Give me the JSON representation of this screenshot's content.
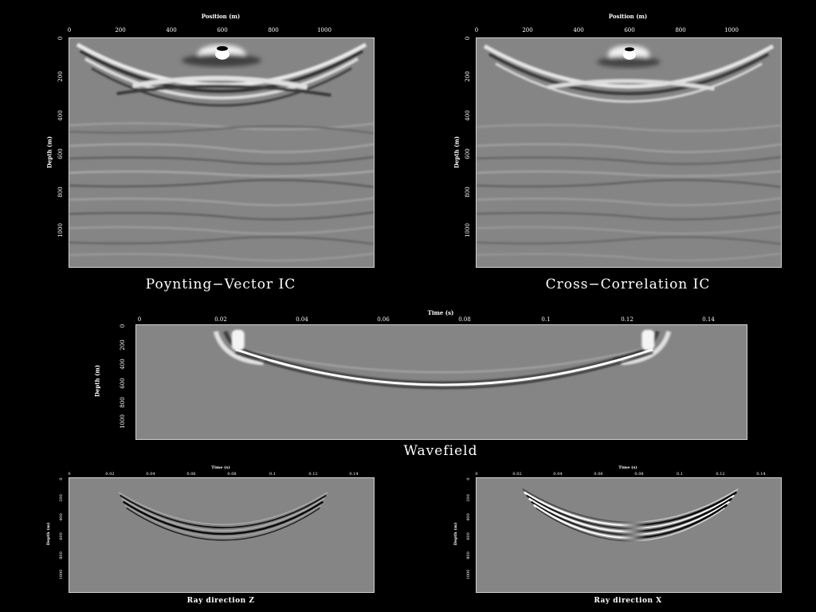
{
  "panels": {
    "pv": {
      "caption": "Poynting−Vector IC",
      "xlabel": "Position (m)",
      "ylabel": "Depth (m)",
      "xticks": [
        "0",
        "200",
        "400",
        "600",
        "800",
        "1000"
      ],
      "yticks": [
        "0",
        "200",
        "400",
        "600",
        "800",
        "1000"
      ]
    },
    "cc": {
      "caption": "Cross−Correlation IC",
      "xlabel": "Position (m)",
      "ylabel": "Depth (m)",
      "xticks": [
        "0",
        "200",
        "400",
        "600",
        "800",
        "1000"
      ],
      "yticks": [
        "0",
        "200",
        "400",
        "600",
        "800",
        "1000"
      ]
    },
    "wf": {
      "caption": "Wavefield",
      "xlabel": "Time (s)",
      "ylabel": "Depth (m)",
      "xticks": [
        "0",
        "0.02",
        "0.04",
        "0.06",
        "0.08",
        "0.1",
        "0.12",
        "0.14"
      ],
      "yticks": [
        "0",
        "200",
        "400",
        "600",
        "800",
        "1000"
      ]
    },
    "rz": {
      "caption": "Ray direction Z",
      "xlabel": "Time (s)",
      "ylabel": "Depth (m)",
      "xticks": [
        "0",
        "0.02",
        "0.04",
        "0.06",
        "0.08",
        "0.1",
        "0.12",
        "0.14"
      ],
      "yticks": [
        "0",
        "200",
        "400",
        "600",
        "800",
        "1000"
      ]
    },
    "rx": {
      "caption": "Ray direction X",
      "xlabel": "Time (s)",
      "ylabel": "Depth (m)",
      "xticks": [
        "0",
        "0.02",
        "0.04",
        "0.06",
        "0.08",
        "0.1",
        "0.12",
        "0.14"
      ],
      "yticks": [
        "0",
        "200",
        "400",
        "600",
        "800",
        "1000"
      ]
    }
  },
  "colors": {
    "background": "#000000",
    "image_gray": "#858585",
    "frame": "#d0d0d0"
  }
}
